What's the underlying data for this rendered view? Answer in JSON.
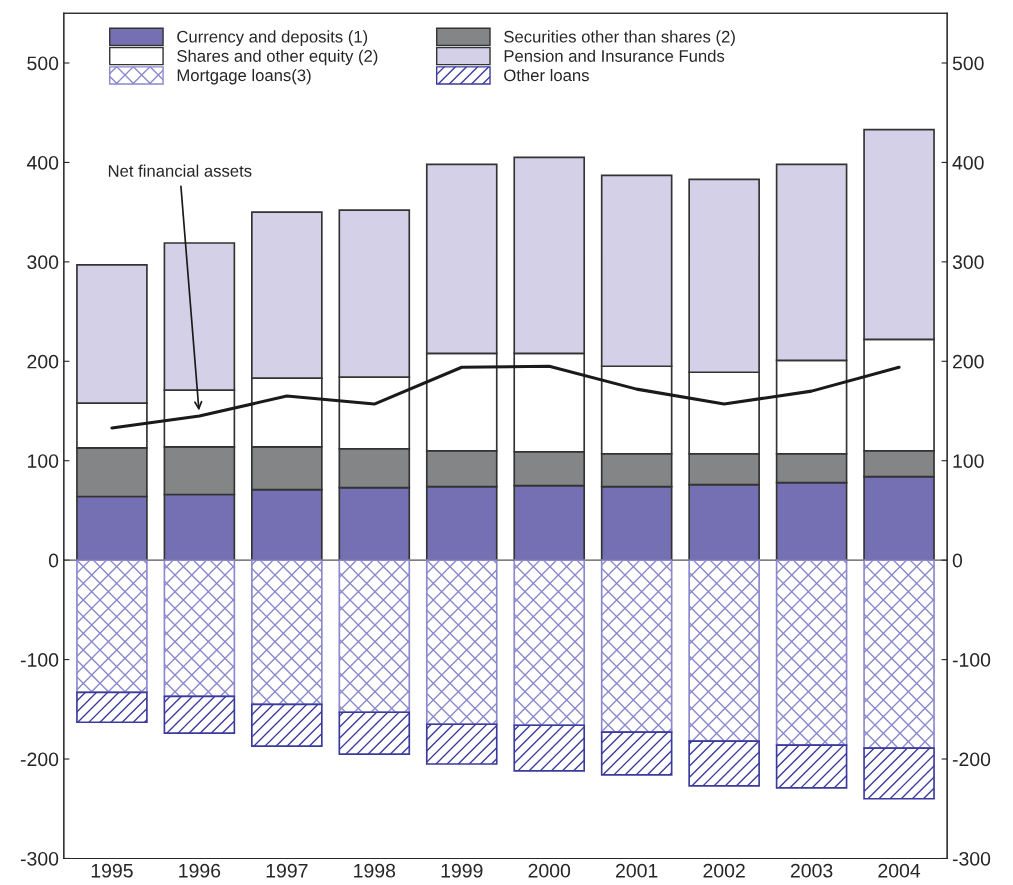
{
  "chart_data": {
    "type": "bar",
    "stacked": true,
    "categories": [
      "1995",
      "1996",
      "1997",
      "1998",
      "1999",
      "2000",
      "2001",
      "2002",
      "2003",
      "2004"
    ],
    "series": [
      {
        "name": "Currency and deposits (1)",
        "color": "#7570b3",
        "values": [
          64,
          66,
          71,
          73,
          74,
          75,
          74,
          76,
          78,
          84
        ]
      },
      {
        "name": "Securities other than shares (2)",
        "color": "#848587",
        "values": [
          49,
          48,
          43,
          39,
          36,
          34,
          33,
          31,
          29,
          26
        ]
      },
      {
        "name": "Shares and other equity (2)",
        "color": "#ffffff",
        "values": [
          45,
          57,
          69,
          72,
          98,
          99,
          88,
          82,
          94,
          112
        ]
      },
      {
        "name": "Pension and Insurance Funds",
        "color": "#d3d0e8",
        "values": [
          139,
          148,
          167,
          168,
          190,
          197,
          192,
          194,
          197,
          211
        ]
      },
      {
        "name": "Mortgage loans(3)",
        "color": "#8b88cc",
        "values": [
          -133,
          -137,
          -145,
          -153,
          -165,
          -166,
          -173,
          -182,
          -186,
          -189
        ]
      },
      {
        "name": "Other loans",
        "color": "#3b3b9e",
        "values": [
          -30,
          -37,
          -42,
          -42,
          -40,
          -46,
          -43,
          -45,
          -43,
          -51
        ]
      },
      {
        "type": "line",
        "color": "#1a1a1a",
        "values": [
          133,
          145,
          165,
          157,
          194,
          195,
          172,
          157,
          170,
          194
        ]
      }
    ],
    "annotations": [
      {
        "text": "Net financial assets",
        "x": "1996",
        "y": 145
      }
    ],
    "ylim": [
      -300,
      550
    ],
    "yticks": [
      -300,
      -200,
      -100,
      0,
      100,
      200,
      300,
      400,
      500
    ],
    "y2lim": [
      -300,
      550
    ],
    "y2ticks": [
      -300,
      -200,
      -100,
      0,
      100,
      200,
      300,
      400,
      500
    ],
    "ref_lines": [
      {
        "axis": "y",
        "value": 0
      }
    ],
    "legend": "top",
    "grid": false
  }
}
